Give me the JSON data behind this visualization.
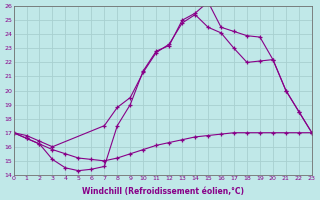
{
  "xlabel": "Windchill (Refroidissement éolien,°C)",
  "bg_color": "#c0e8e8",
  "line_color": "#880088",
  "grid_color": "#a8d0d0",
  "xmin": 0,
  "xmax": 23,
  "ymin": 14,
  "ymax": 26,
  "line1_x": [
    0,
    1,
    2,
    3,
    4,
    5,
    6,
    7,
    8,
    9,
    10,
    11,
    12,
    13,
    14,
    15,
    16,
    17,
    18,
    19,
    20,
    21,
    22,
    23
  ],
  "line1_y": [
    17.0,
    16.6,
    16.2,
    15.1,
    14.5,
    14.3,
    14.4,
    14.6,
    17.5,
    19.0,
    21.4,
    22.8,
    23.2,
    25.0,
    25.5,
    26.3,
    24.5,
    24.2,
    23.9,
    23.8,
    22.2,
    20.0,
    18.5,
    17.0
  ],
  "line2_x": [
    0,
    1,
    2,
    3,
    4,
    5,
    6,
    7,
    8,
    9,
    10,
    11,
    12,
    13,
    14,
    15,
    16,
    17,
    18,
    19,
    20,
    21,
    22,
    23
  ],
  "line2_y": [
    17.0,
    16.6,
    16.2,
    15.8,
    15.5,
    15.2,
    15.1,
    15.0,
    15.2,
    15.5,
    15.8,
    16.1,
    16.3,
    16.5,
    16.7,
    16.8,
    16.9,
    17.0,
    17.0,
    17.0,
    17.0,
    17.0,
    17.0,
    17.0
  ],
  "line3_x": [
    0,
    1,
    2,
    3,
    7,
    8,
    9,
    10,
    11,
    12,
    13,
    14,
    15,
    16,
    17,
    18,
    19,
    20,
    21,
    22,
    23
  ],
  "line3_y": [
    17.0,
    16.8,
    16.4,
    16.0,
    17.5,
    18.8,
    19.5,
    21.3,
    22.7,
    23.3,
    24.8,
    25.4,
    24.5,
    24.1,
    23.0,
    22.0,
    22.1,
    22.2,
    20.0,
    18.5,
    17.0
  ]
}
